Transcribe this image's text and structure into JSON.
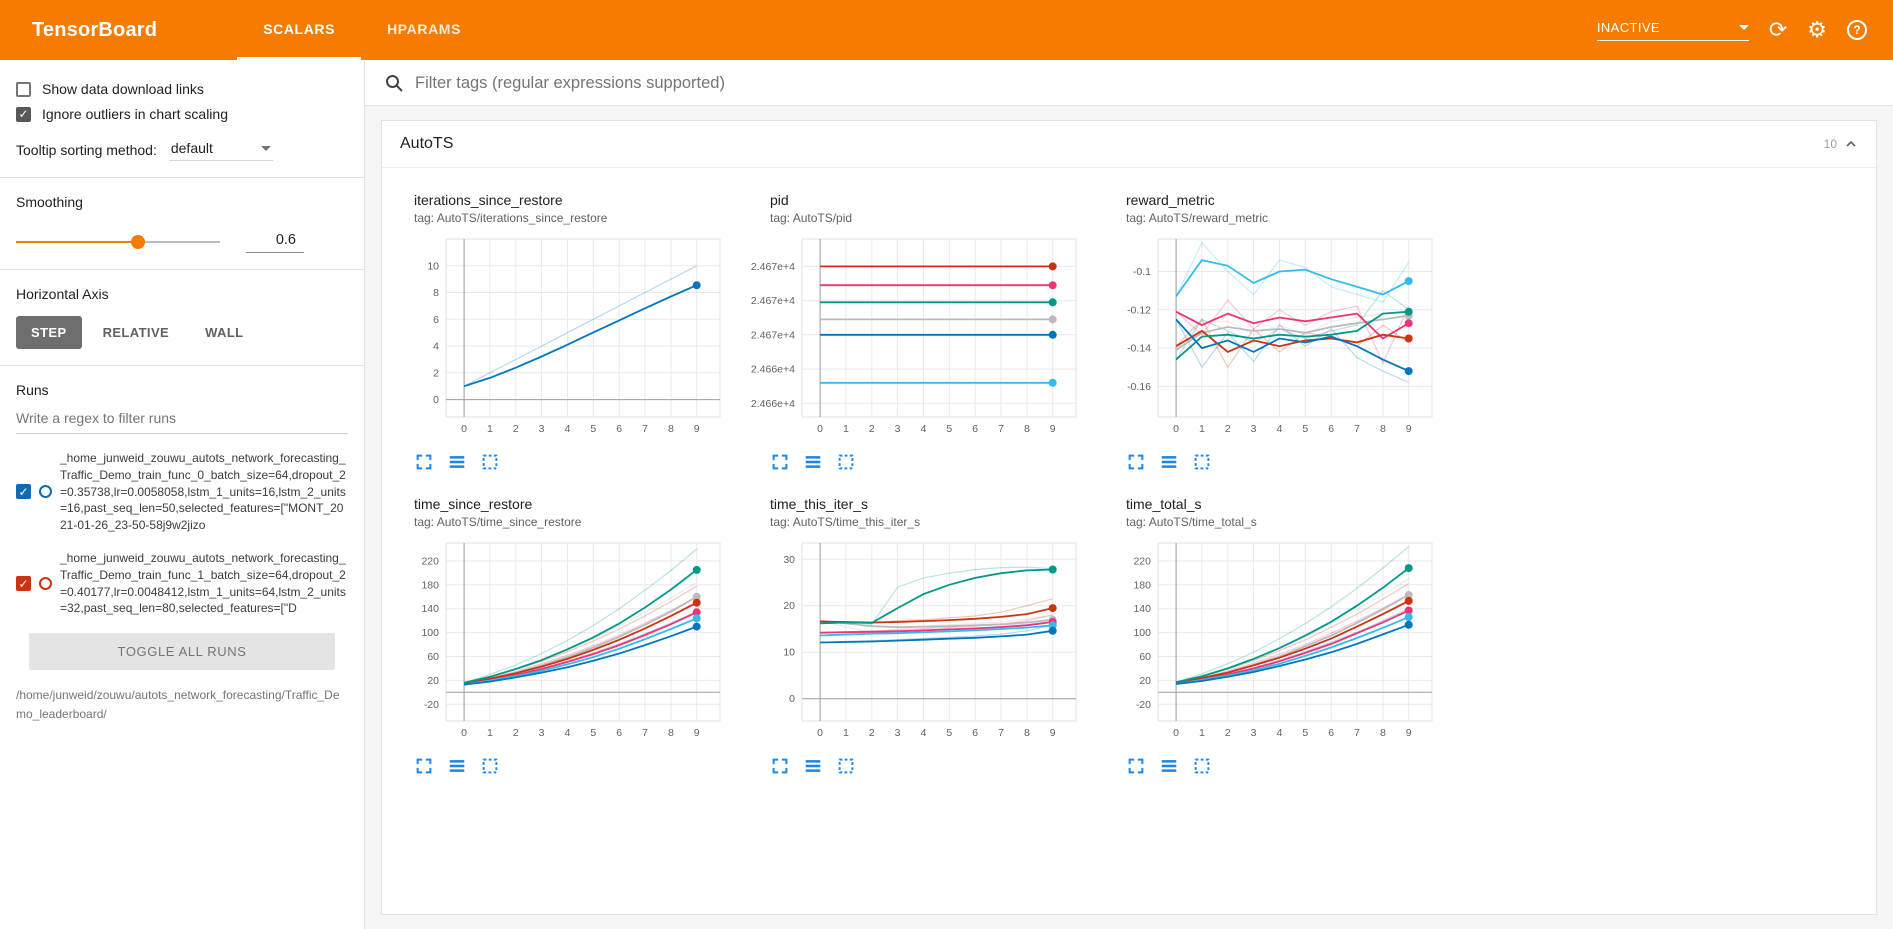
{
  "header": {
    "title": "TensorBoard",
    "tabs": [
      {
        "label": "SCALARS",
        "active": true
      },
      {
        "label": "HPARAMS",
        "active": false
      }
    ],
    "status": "INACTIVE",
    "icons": {
      "refresh": "⟳",
      "settings": "⚙"
    }
  },
  "sidebar": {
    "checkboxes": [
      {
        "label": "Show data download links",
        "checked": false
      },
      {
        "label": "Ignore outliers in chart scaling",
        "checked": true
      }
    ],
    "tooltip_sorting": {
      "label": "Tooltip sorting method:",
      "value": "default"
    },
    "smoothing": {
      "label": "Smoothing",
      "value": "0.6"
    },
    "horizontal_axis": {
      "label": "Horizontal Axis",
      "options": [
        "STEP",
        "RELATIVE",
        "WALL"
      ],
      "selected": "STEP"
    },
    "runs": {
      "label": "Runs",
      "filter_placeholder": "Write a regex to filter runs",
      "items": [
        {
          "label": "_home_junweid_zouwu_autots_network_forecasting_Traffic_Demo_train_func_0_batch_size=64,dropout_2=0.35738,lr=0.0058058,lstm_1_units=16,lstm_2_units=16,past_seq_len=50,selected_features=[\"MONT_2021-01-26_23-50-58j9w2jizo",
          "checked": true,
          "color": "#0f6ab4"
        },
        {
          "label": "_home_junweid_zouwu_autots_network_forecasting_Traffic_Demo_train_func_1_batch_size=64,dropout_2=0.40177,lr=0.0048412,lstm_1_units=64,lstm_2_units=32,past_seq_len=80,selected_features=[\"D",
          "checked": true,
          "color": "#cc3311"
        }
      ],
      "toggle_all_label": "TOGGLE ALL RUNS",
      "path": "/home/junweid/zouwu/autots_network_forecasting/Traffic_Demo_leaderboard/"
    }
  },
  "main": {
    "filter_placeholder": "Filter tags (regular expressions supported)",
    "section": {
      "title": "AutoTS",
      "count": "10"
    }
  },
  "chart_data": [
    {
      "type": "line",
      "title": "iterations_since_restore",
      "tag": "tag: AutoTS/iterations_since_restore",
      "x": [
        0,
        1,
        2,
        3,
        4,
        5,
        6,
        7,
        8,
        9
      ],
      "xticks": [
        0,
        1,
        2,
        3,
        4,
        5,
        6,
        7,
        8,
        9
      ],
      "xlim": [
        -0.7,
        9.9
      ],
      "ylim": [
        -1.3,
        12
      ],
      "yticks": [
        0,
        2,
        4,
        6,
        8,
        10
      ],
      "ytick_labels": [
        "0",
        "2",
        "4",
        "6",
        "8",
        "10"
      ],
      "series": [
        {
          "color": "#0077bb",
          "values": [
            1,
            1.62,
            2.38,
            3.22,
            4.1,
            5.02,
            5.92,
            6.82,
            7.7,
            8.55
          ],
          "raw": [
            1,
            2,
            3,
            4,
            5,
            6,
            7,
            8,
            9,
            10
          ]
        }
      ]
    },
    {
      "type": "line",
      "title": "pid",
      "tag": "tag: AutoTS/pid",
      "x": [
        0,
        1,
        2,
        3,
        4,
        5,
        6,
        7,
        8,
        9
      ],
      "xticks": [
        0,
        1,
        2,
        3,
        4,
        5,
        6,
        7,
        8,
        9
      ],
      "xlim": [
        -0.7,
        9.9
      ],
      "ylim": [
        24661.2,
        24671.6
      ],
      "yticks": [
        24662,
        24664,
        24666,
        24668,
        24670
      ],
      "ytick_labels": [
        "2.466e+4",
        "2.466e+4",
        "2.467e+4",
        "2.467e+4",
        "2.467e+4"
      ],
      "series": [
        {
          "color": "#cc3311",
          "values": [
            24670,
            24670,
            24670,
            24670,
            24670,
            24670,
            24670,
            24670,
            24670,
            24670
          ]
        },
        {
          "color": "#ee3377",
          "values": [
            24668.9,
            24668.9,
            24668.9,
            24668.9,
            24668.9,
            24668.9,
            24668.9,
            24668.9,
            24668.9,
            24668.9
          ]
        },
        {
          "color": "#009988",
          "values": [
            24667.9,
            24667.9,
            24667.9,
            24667.9,
            24667.9,
            24667.9,
            24667.9,
            24667.9,
            24667.9,
            24667.9
          ]
        },
        {
          "color": "#bbbbbb",
          "values": [
            24666.9,
            24666.9,
            24666.9,
            24666.9,
            24666.9,
            24666.9,
            24666.9,
            24666.9,
            24666.9,
            24666.9
          ]
        },
        {
          "color": "#0077bb",
          "values": [
            24666,
            24666,
            24666,
            24666,
            24666,
            24666,
            24666,
            24666,
            24666,
            24666
          ]
        },
        {
          "color": "#33bbee",
          "values": [
            24663.2,
            24663.2,
            24663.2,
            24663.2,
            24663.2,
            24663.2,
            24663.2,
            24663.2,
            24663.2,
            24663.2
          ]
        }
      ]
    },
    {
      "type": "line",
      "title": "reward_metric",
      "tag": "tag: AutoTS/reward_metric",
      "x": [
        0,
        1,
        2,
        3,
        4,
        5,
        6,
        7,
        8,
        9
      ],
      "xticks": [
        0,
        1,
        2,
        3,
        4,
        5,
        6,
        7,
        8,
        9
      ],
      "xlim": [
        -0.7,
        9.9
      ],
      "ylim": [
        -0.176,
        -0.083
      ],
      "yticks": [
        -0.16,
        -0.14,
        -0.12,
        -0.1
      ],
      "ytick_labels": [
        "-0.16",
        "-0.14",
        "-0.12",
        "-0.1"
      ],
      "series": [
        {
          "color": "#bbbbbb",
          "values": [
            -0.141,
            -0.132,
            -0.129,
            -0.131,
            -0.13,
            -0.132,
            -0.129,
            -0.127,
            -0.125,
            -0.123
          ],
          "raw": [
            -0.141,
            -0.126,
            -0.126,
            -0.133,
            -0.128,
            -0.133,
            -0.126,
            -0.124,
            -0.122,
            -0.121
          ]
        },
        {
          "color": "#ee3377",
          "values": [
            -0.121,
            -0.128,
            -0.122,
            -0.127,
            -0.124,
            -0.126,
            -0.124,
            -0.122,
            -0.135,
            -0.127
          ],
          "raw": [
            -0.121,
            -0.133,
            -0.115,
            -0.13,
            -0.12,
            -0.128,
            -0.121,
            -0.118,
            -0.148,
            -0.118
          ]
        },
        {
          "color": "#cc3311",
          "values": [
            -0.139,
            -0.131,
            -0.142,
            -0.136,
            -0.139,
            -0.136,
            -0.135,
            -0.137,
            -0.133,
            -0.135
          ],
          "raw": [
            -0.139,
            -0.125,
            -0.15,
            -0.13,
            -0.142,
            -0.132,
            -0.134,
            -0.139,
            -0.128,
            -0.137
          ]
        },
        {
          "color": "#009988",
          "values": [
            -0.146,
            -0.134,
            -0.133,
            -0.135,
            -0.133,
            -0.134,
            -0.133,
            -0.131,
            -0.122,
            -0.121
          ],
          "raw": [
            -0.146,
            -0.125,
            -0.131,
            -0.137,
            -0.13,
            -0.135,
            -0.131,
            -0.128,
            -0.11,
            -0.12
          ]
        },
        {
          "color": "#0077bb",
          "values": [
            -0.125,
            -0.14,
            -0.136,
            -0.142,
            -0.135,
            -0.137,
            -0.134,
            -0.139,
            -0.146,
            -0.152
          ],
          "raw": [
            -0.125,
            -0.15,
            -0.132,
            -0.147,
            -0.128,
            -0.139,
            -0.13,
            -0.145,
            -0.152,
            -0.158
          ]
        },
        {
          "color": "#33bbee",
          "values": [
            -0.113,
            -0.094,
            -0.097,
            -0.106,
            -0.1,
            -0.099,
            -0.104,
            -0.108,
            -0.112,
            -0.105
          ],
          "raw": [
            -0.113,
            -0.085,
            -0.1,
            -0.112,
            -0.094,
            -0.098,
            -0.108,
            -0.112,
            -0.116,
            -0.095
          ]
        }
      ]
    },
    {
      "type": "line",
      "title": "time_since_restore",
      "tag": "tag: AutoTS/time_since_restore",
      "x": [
        0,
        1,
        2,
        3,
        4,
        5,
        6,
        7,
        8,
        9
      ],
      "xticks": [
        0,
        1,
        2,
        3,
        4,
        5,
        6,
        7,
        8,
        9
      ],
      "xlim": [
        -0.7,
        9.9
      ],
      "ylim": [
        -48,
        250
      ],
      "yticks": [
        -20,
        20,
        60,
        100,
        140,
        180,
        220
      ],
      "ytick_labels": [
        "-20",
        "20",
        "60",
        "100",
        "140",
        "180",
        "220"
      ],
      "series": [
        {
          "color": "#bbbbbb",
          "values": [
            15,
            23,
            33,
            45,
            59,
            75,
            93,
            113,
            135,
            160
          ],
          "raw": [
            15,
            26,
            39,
            54,
            71,
            90,
            111,
            134,
            158,
            184
          ]
        },
        {
          "color": "#ee3377",
          "values": [
            15,
            21,
            29,
            39,
            51,
            64,
            79,
            96,
            114,
            134
          ],
          "raw": [
            15,
            24,
            35,
            48,
            62,
            78,
            96,
            116,
            137,
            160
          ]
        },
        {
          "color": "#33bbee",
          "values": [
            14,
            20,
            27,
            36,
            47,
            59,
            73,
            89,
            106,
            124
          ],
          "raw": [
            14,
            22,
            32,
            44,
            57,
            72,
            89,
            107,
            127,
            148
          ]
        },
        {
          "color": "#0077bb",
          "values": [
            13,
            18,
            25,
            33,
            42,
            53,
            65,
            79,
            94,
            110
          ],
          "raw": [
            13,
            20,
            29,
            40,
            52,
            66,
            81,
            98,
            116,
            135
          ]
        },
        {
          "color": "#cc3311",
          "values": [
            16,
            23,
            32,
            43,
            56,
            71,
            88,
            107,
            128,
            150
          ],
          "raw": [
            16,
            26,
            38,
            52,
            68,
            86,
            106,
            128,
            152,
            178
          ]
        },
        {
          "color": "#009988",
          "values": [
            16,
            26,
            39,
            54,
            72,
            92,
            115,
            142,
            172,
            205
          ],
          "raw": [
            16,
            30,
            46,
            65,
            87,
            112,
            140,
            171,
            204,
            240
          ]
        }
      ]
    },
    {
      "type": "line",
      "title": "time_this_iter_s",
      "tag": "tag: AutoTS/time_this_iter_s",
      "x": [
        0,
        1,
        2,
        3,
        4,
        5,
        6,
        7,
        8,
        9
      ],
      "xticks": [
        0,
        1,
        2,
        3,
        4,
        5,
        6,
        7,
        8,
        9
      ],
      "xlim": [
        -0.7,
        9.9
      ],
      "ylim": [
        -4.8,
        33.5
      ],
      "yticks": [
        0,
        10,
        20,
        30
      ],
      "ytick_labels": [
        "0",
        "10",
        "20",
        "30"
      ],
      "series": [
        {
          "color": "#bbbbbb",
          "values": [
            16.8,
            16.2,
            15.6,
            15.4,
            15.5,
            15.6,
            15.8,
            16,
            16.4,
            17
          ],
          "raw": [
            16.8,
            15.4,
            14.2,
            15,
            15.6,
            15.9,
            16.2,
            16.5,
            17.2,
            18
          ]
        },
        {
          "color": "#ee3377",
          "values": [
            14.2,
            14.3,
            14.4,
            14.5,
            14.7,
            14.9,
            15.1,
            15.4,
            15.8,
            16.5
          ],
          "raw": [
            14.2,
            14.4,
            14.6,
            14.8,
            15.1,
            15.3,
            15.6,
            16,
            16.8,
            18
          ]
        },
        {
          "color": "#33bbee",
          "values": [
            13.6,
            13.8,
            14,
            14.1,
            14.3,
            14.5,
            14.7,
            15,
            15.3,
            15.8
          ],
          "raw": [
            13.6,
            14,
            14.2,
            14.4,
            14.7,
            14.9,
            15.2,
            15.6,
            16,
            16.8
          ]
        },
        {
          "color": "#0077bb",
          "values": [
            12.1,
            12.2,
            12.3,
            12.5,
            12.7,
            12.9,
            13.1,
            13.4,
            13.8,
            14.6
          ],
          "raw": [
            12.1,
            12.3,
            12.5,
            12.7,
            13,
            13.2,
            13.5,
            13.9,
            14.6,
            15.8
          ]
        },
        {
          "color": "#cc3311",
          "values": [
            16.6,
            16.5,
            16.4,
            16.5,
            16.7,
            16.9,
            17.2,
            17.6,
            18.2,
            19.5
          ],
          "raw": [
            16.6,
            16.4,
            16.2,
            16.8,
            17,
            17.4,
            17.8,
            18.6,
            20,
            21.5
          ]
        },
        {
          "color": "#009988",
          "values": [
            16.2,
            16.4,
            16.3,
            19.5,
            22.5,
            24.5,
            26,
            27,
            27.6,
            27.8
          ],
          "raw": [
            16.2,
            16.6,
            16,
            24,
            26,
            27,
            27.8,
            28.2,
            28.3,
            28
          ]
        }
      ]
    },
    {
      "type": "line",
      "title": "time_total_s",
      "tag": "tag: AutoTS/time_total_s",
      "x": [
        0,
        1,
        2,
        3,
        4,
        5,
        6,
        7,
        8,
        9
      ],
      "xticks": [
        0,
        1,
        2,
        3,
        4,
        5,
        6,
        7,
        8,
        9
      ],
      "xlim": [
        -0.7,
        9.9
      ],
      "ylim": [
        -48,
        250
      ],
      "yticks": [
        -20,
        20,
        60,
        100,
        140,
        180,
        220
      ],
      "ytick_labels": [
        "-20",
        "20",
        "60",
        "100",
        "140",
        "180",
        "220"
      ],
      "series": [
        {
          "color": "#bbbbbb",
          "values": [
            16,
            24,
            34,
            46,
            60,
            77,
            95,
            116,
            139,
            163
          ],
          "raw": [
            16,
            27,
            40,
            55,
            73,
            93,
            115,
            139,
            164,
            190
          ]
        },
        {
          "color": "#ee3377",
          "values": [
            16,
            22,
            30,
            40,
            52,
            66,
            81,
            99,
            117,
            137
          ],
          "raw": [
            16,
            25,
            36,
            49,
            64,
            80,
            99,
            119,
            141,
            164
          ]
        },
        {
          "color": "#33bbee",
          "values": [
            15,
            21,
            28,
            37,
            48,
            61,
            75,
            91,
            108,
            126
          ],
          "raw": [
            15,
            23,
            33,
            45,
            59,
            74,
            91,
            110,
            130,
            152
          ]
        },
        {
          "color": "#0077bb",
          "values": [
            14,
            19,
            26,
            34,
            44,
            55,
            67,
            81,
            97,
            113
          ],
          "raw": [
            14,
            21,
            30,
            41,
            54,
            68,
            84,
            101,
            120,
            140
          ]
        },
        {
          "color": "#cc3311",
          "values": [
            17,
            24,
            33,
            45,
            58,
            73,
            90,
            110,
            131,
            153
          ],
          "raw": [
            17,
            27,
            39,
            53,
            70,
            88,
            109,
            131,
            156,
            182
          ]
        },
        {
          "color": "#009988",
          "values": [
            17,
            27,
            40,
            56,
            74,
            95,
            118,
            145,
            175,
            208
          ],
          "raw": [
            17,
            31,
            48,
            67,
            90,
            115,
            143,
            174,
            208,
            244
          ]
        }
      ]
    }
  ]
}
